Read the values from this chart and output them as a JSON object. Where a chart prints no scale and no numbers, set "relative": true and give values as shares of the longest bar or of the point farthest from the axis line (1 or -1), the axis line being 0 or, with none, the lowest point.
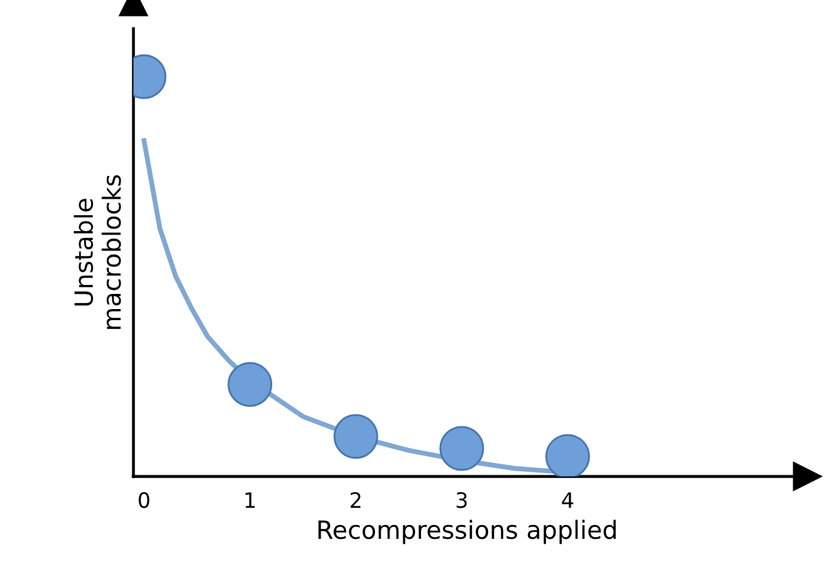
{
  "chart_data": {
    "type": "scatter",
    "xlabel": "Recompressions applied",
    "ylabel": "Unstable\nmacroblocks",
    "relative": true,
    "xlim": [
      -0.1,
      6.2
    ],
    "xticks": [
      0,
      1,
      2,
      3,
      4
    ],
    "grid": false,
    "series": [
      {
        "type": "line",
        "color": "#7fa7d3",
        "marker": "none",
        "x": [
          0,
          0.15,
          0.3,
          0.45,
          0.6,
          0.8,
          1,
          1.5,
          2,
          2.5,
          3,
          3.5,
          4
        ],
        "values": [
          0.84,
          0.62,
          0.5,
          0.42,
          0.35,
          0.29,
          0.24,
          0.15,
          0.1,
          0.065,
          0.04,
          0.02,
          0.01
        ]
      },
      {
        "color": "#6f9fd8",
        "marker": "circle",
        "x": [
          0,
          1,
          2,
          3,
          4
        ],
        "values": [
          1,
          0.23,
          0.1,
          0.07,
          0.05
        ]
      }
    ]
  }
}
